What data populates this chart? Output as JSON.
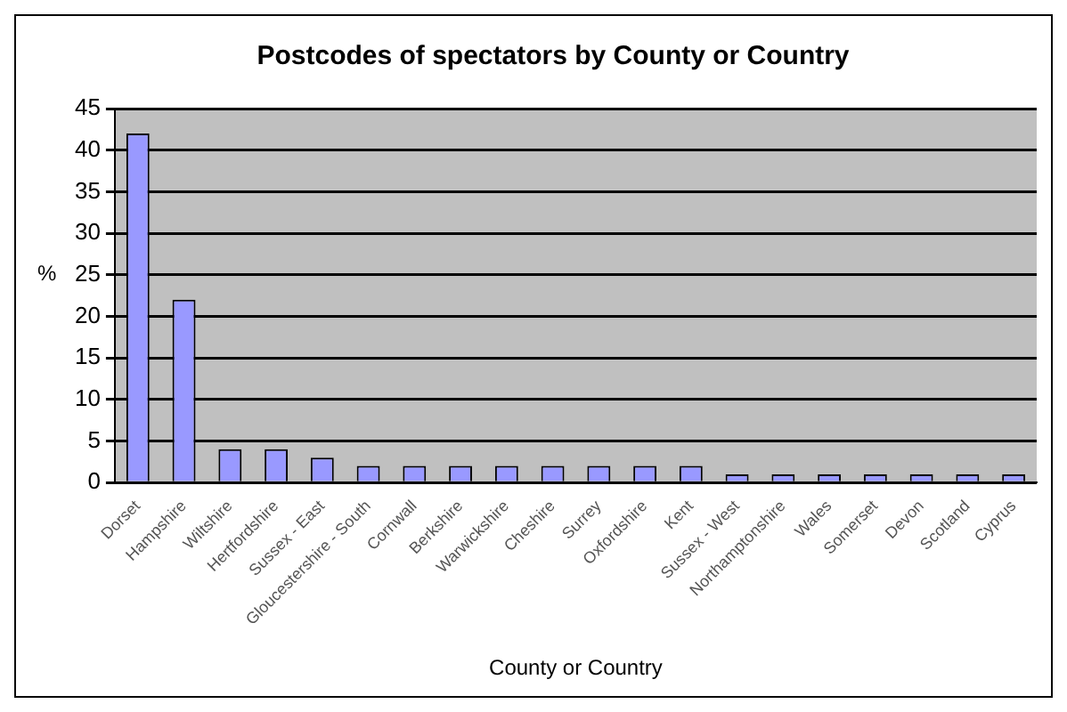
{
  "chart_data": {
    "type": "bar",
    "title": "Postcodes of spectators by County or Country",
    "xlabel": "County or Country",
    "ylabel": "%",
    "categories": [
      "Dorset",
      "Hampshire",
      "Wiltshire",
      "Hertfordshire",
      "Sussex - East",
      "Gloucestershire - South",
      "Cornwall",
      "Berkshire",
      "Warwickshire",
      "Cheshire",
      "Surrey",
      "Oxfordshire",
      "Kent",
      "Sussex - West",
      "Northamptonshire",
      "Wales",
      "Somerset",
      "Devon",
      "Scotland",
      "Cyprus"
    ],
    "values": [
      42,
      22,
      4,
      4,
      3,
      2,
      2,
      2,
      2,
      2,
      2,
      2,
      2,
      1,
      1,
      1,
      1,
      1,
      1,
      1
    ],
    "color": "#9999ff",
    "ylim": [
      0,
      45
    ],
    "yticks": [
      0,
      5,
      10,
      15,
      20,
      25,
      30,
      35,
      40,
      45
    ],
    "grid": "y"
  }
}
